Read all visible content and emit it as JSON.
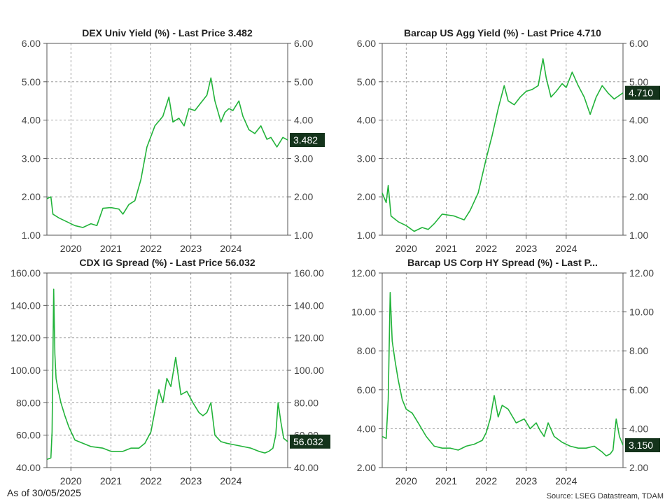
{
  "footer": {
    "as_of": "As of 30/05/2025",
    "source": "Source: LSEG Datastream, TDAM"
  },
  "colors": {
    "line": "#22b33a",
    "badge_bg": "#14331b",
    "badge_text": "#ffffff",
    "grid": "#8a8a8a"
  },
  "chart_data": [
    {
      "type": "line",
      "title": "DEX Univ Yield  (%) - Last Price 3.482",
      "last_label": "3.482",
      "last_value": 3.482,
      "ylim": [
        1.0,
        6.0
      ],
      "yticks": [
        1.0,
        2.0,
        3.0,
        4.0,
        5.0,
        6.0
      ],
      "ytick_labels": [
        "1.00",
        "2.00",
        "3.00",
        "4.00",
        "5.00",
        "6.00"
      ],
      "xticks": [
        "2020",
        "2021",
        "2022",
        "2023",
        "2024"
      ],
      "xtick_pos": [
        2020.0,
        2021.0,
        2022.0,
        2023.0,
        2024.0
      ],
      "xlim": [
        2019.4,
        2025.42
      ],
      "x": [
        2019.4,
        2019.5,
        2019.55,
        2019.7,
        2019.9,
        2020.1,
        2020.3,
        2020.5,
        2020.65,
        2020.8,
        2021.0,
        2021.2,
        2021.3,
        2021.45,
        2021.6,
        2021.75,
        2021.9,
        2022.1,
        2022.3,
        2022.45,
        2022.55,
        2022.7,
        2022.83,
        2022.95,
        2023.1,
        2023.25,
        2023.4,
        2023.5,
        2023.6,
        2023.75,
        2023.85,
        2023.95,
        2024.05,
        2024.2,
        2024.3,
        2024.45,
        2024.6,
        2024.75,
        2024.9,
        2025.0,
        2025.15,
        2025.3,
        2025.42
      ],
      "y": [
        1.95,
        2.0,
        1.55,
        1.45,
        1.35,
        1.25,
        1.2,
        1.3,
        1.25,
        1.7,
        1.72,
        1.68,
        1.55,
        1.8,
        1.9,
        2.45,
        3.3,
        3.85,
        4.1,
        4.6,
        3.95,
        4.05,
        3.85,
        4.3,
        4.25,
        4.45,
        4.65,
        5.1,
        4.5,
        3.95,
        4.2,
        4.3,
        4.25,
        4.5,
        4.1,
        3.75,
        3.65,
        3.85,
        3.5,
        3.55,
        3.3,
        3.55,
        3.48
      ]
    },
    {
      "type": "line",
      "title": "Barcap US Agg Yield (%) - Last Price 4.710",
      "last_label": "4.710",
      "last_value": 4.71,
      "ylim": [
        1.0,
        6.0
      ],
      "yticks": [
        1.0,
        2.0,
        3.0,
        4.0,
        5.0,
        6.0
      ],
      "ytick_labels": [
        "1.00",
        "2.00",
        "3.00",
        "4.00",
        "5.00",
        "6.00"
      ],
      "xticks": [
        "2020",
        "2021",
        "2022",
        "2023",
        "2024"
      ],
      "xtick_pos": [
        2020.0,
        2021.0,
        2022.0,
        2023.0,
        2024.0
      ],
      "xlim": [
        2019.4,
        2025.42
      ],
      "x": [
        2019.4,
        2019.5,
        2019.55,
        2019.62,
        2019.8,
        2020.0,
        2020.2,
        2020.4,
        2020.55,
        2020.7,
        2020.9,
        2021.2,
        2021.45,
        2021.6,
        2021.8,
        2022.0,
        2022.15,
        2022.3,
        2022.45,
        2022.55,
        2022.7,
        2022.85,
        2023.0,
        2023.15,
        2023.3,
        2023.42,
        2023.5,
        2023.62,
        2023.75,
        2023.9,
        2024.0,
        2024.15,
        2024.3,
        2024.45,
        2024.6,
        2024.75,
        2024.9,
        2025.05,
        2025.2,
        2025.42
      ],
      "y": [
        2.1,
        1.85,
        2.3,
        1.5,
        1.35,
        1.25,
        1.1,
        1.2,
        1.15,
        1.3,
        1.55,
        1.5,
        1.4,
        1.65,
        2.1,
        3.0,
        3.6,
        4.3,
        4.9,
        4.5,
        4.4,
        4.6,
        4.75,
        4.8,
        4.9,
        5.6,
        5.1,
        4.6,
        4.75,
        4.95,
        4.85,
        5.25,
        4.9,
        4.6,
        4.15,
        4.6,
        4.9,
        4.7,
        4.55,
        4.71
      ]
    },
    {
      "type": "line",
      "title": "CDX IG Spread (%) - Last Price 56.032",
      "last_label": "56.032",
      "last_value": 56.032,
      "ylim": [
        40.0,
        160.0
      ],
      "yticks": [
        40.0,
        60.0,
        80.0,
        100.0,
        120.0,
        140.0,
        160.0
      ],
      "ytick_labels": [
        "40.00",
        "60.00",
        "80.00",
        "100.00",
        "120.00",
        "140.00",
        "160.00"
      ],
      "xticks": [
        "2020",
        "2021",
        "2022",
        "2023",
        "2024"
      ],
      "xtick_pos": [
        2020.0,
        2021.0,
        2022.0,
        2023.0,
        2024.0
      ],
      "xlim": [
        2019.4,
        2025.42
      ],
      "x": [
        2019.4,
        2019.5,
        2019.53,
        2019.57,
        2019.6,
        2019.63,
        2019.68,
        2019.75,
        2019.85,
        2019.95,
        2020.1,
        2020.3,
        2020.5,
        2020.8,
        2021.0,
        2021.3,
        2021.5,
        2021.7,
        2021.85,
        2022.0,
        2022.1,
        2022.2,
        2022.3,
        2022.4,
        2022.5,
        2022.62,
        2022.75,
        2022.9,
        2023.05,
        2023.2,
        2023.3,
        2023.4,
        2023.5,
        2023.6,
        2023.75,
        2023.9,
        2024.1,
        2024.3,
        2024.5,
        2024.7,
        2024.85,
        2024.95,
        2025.05,
        2025.12,
        2025.18,
        2025.25,
        2025.32,
        2025.42
      ],
      "y": [
        45.0,
        46.0,
        62.0,
        150.0,
        110.0,
        95.0,
        88.0,
        80.0,
        72.0,
        65.0,
        57.0,
        55.0,
        53.0,
        52.0,
        50.0,
        50.0,
        52.0,
        52.0,
        55.0,
        62.0,
        75.0,
        88.0,
        80.0,
        95.0,
        90.0,
        108.0,
        85.0,
        87.0,
        80.0,
        74.0,
        72.0,
        74.0,
        80.0,
        60.0,
        56.0,
        55.0,
        54.0,
        53.0,
        52.0,
        50.0,
        49.0,
        50.0,
        52.0,
        60.0,
        80.0,
        68.0,
        58.0,
        56.0
      ]
    },
    {
      "type": "line",
      "title": "Barcap US Corp HY Spread (%) - Last P...",
      "last_label": "3.150",
      "last_value": 3.15,
      "ylim": [
        2.0,
        12.0
      ],
      "yticks": [
        2.0,
        4.0,
        6.0,
        8.0,
        10.0,
        12.0
      ],
      "ytick_labels": [
        "2.00",
        "4.00",
        "6.00",
        "8.00",
        "10.00",
        "12.00"
      ],
      "xticks": [
        "2020",
        "2021",
        "2022",
        "2023",
        "2024"
      ],
      "xtick_pos": [
        2020.0,
        2021.0,
        2022.0,
        2023.0,
        2024.0
      ],
      "xlim": [
        2019.4,
        2025.42
      ],
      "x": [
        2019.4,
        2019.5,
        2019.55,
        2019.6,
        2019.65,
        2019.72,
        2019.8,
        2019.9,
        2020.0,
        2020.15,
        2020.3,
        2020.5,
        2020.7,
        2020.9,
        2021.1,
        2021.3,
        2021.5,
        2021.7,
        2021.9,
        2022.0,
        2022.1,
        2022.2,
        2022.3,
        2022.4,
        2022.55,
        2022.75,
        2022.95,
        2023.1,
        2023.25,
        2023.35,
        2023.45,
        2023.55,
        2023.7,
        2023.9,
        2024.1,
        2024.3,
        2024.5,
        2024.7,
        2024.9,
        2025.0,
        2025.1,
        2025.17,
        2025.25,
        2025.33,
        2025.42
      ],
      "y": [
        3.6,
        3.5,
        5.5,
        11.0,
        8.5,
        7.5,
        6.5,
        5.5,
        5.0,
        4.8,
        4.3,
        3.6,
        3.1,
        3.0,
        3.0,
        2.9,
        3.1,
        3.2,
        3.4,
        3.8,
        4.5,
        5.7,
        4.6,
        5.2,
        5.0,
        4.3,
        4.5,
        4.0,
        4.3,
        3.9,
        3.6,
        4.3,
        3.6,
        3.3,
        3.1,
        3.0,
        3.0,
        3.1,
        2.8,
        2.6,
        2.7,
        2.9,
        4.5,
        3.6,
        3.15
      ]
    }
  ]
}
